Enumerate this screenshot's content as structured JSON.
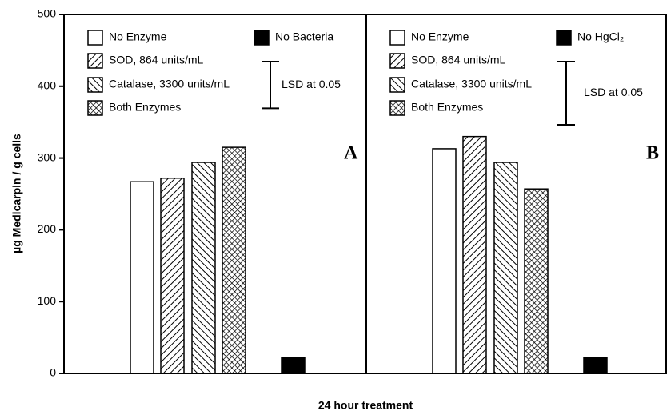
{
  "chart_data": [
    {
      "type": "bar",
      "panel_label": "A",
      "y_label": "µg Medicarpin / g cells",
      "x_label": "24 hour treatment",
      "ylim": [
        0,
        500
      ],
      "yticks": [
        0,
        100,
        200,
        300,
        400,
        500
      ],
      "categories": [
        "No Enzyme",
        "SOD, 864 units/mL",
        "Catalase, 3300 units/mL",
        "Both Enzymes",
        "No Bacteria"
      ],
      "patterns": [
        "none",
        "diag-right",
        "diag-left",
        "crosshatch",
        "solid"
      ],
      "values": [
        267,
        272,
        294,
        315,
        22
      ],
      "lsd_label": "LSD at 0.05",
      "lsd": 65
    },
    {
      "type": "bar",
      "panel_label": "B",
      "categories": [
        "No Enzyme",
        "SOD, 864 units/mL",
        "Catalase, 3300 units/mL",
        "Both Enzymes",
        "No HgCl₂"
      ],
      "patterns": [
        "none",
        "diag-right",
        "diag-left",
        "crosshatch",
        "solid"
      ],
      "values": [
        313,
        330,
        294,
        257,
        22
      ],
      "lsd_label": "LSD at 0.05",
      "lsd": 88
    }
  ]
}
